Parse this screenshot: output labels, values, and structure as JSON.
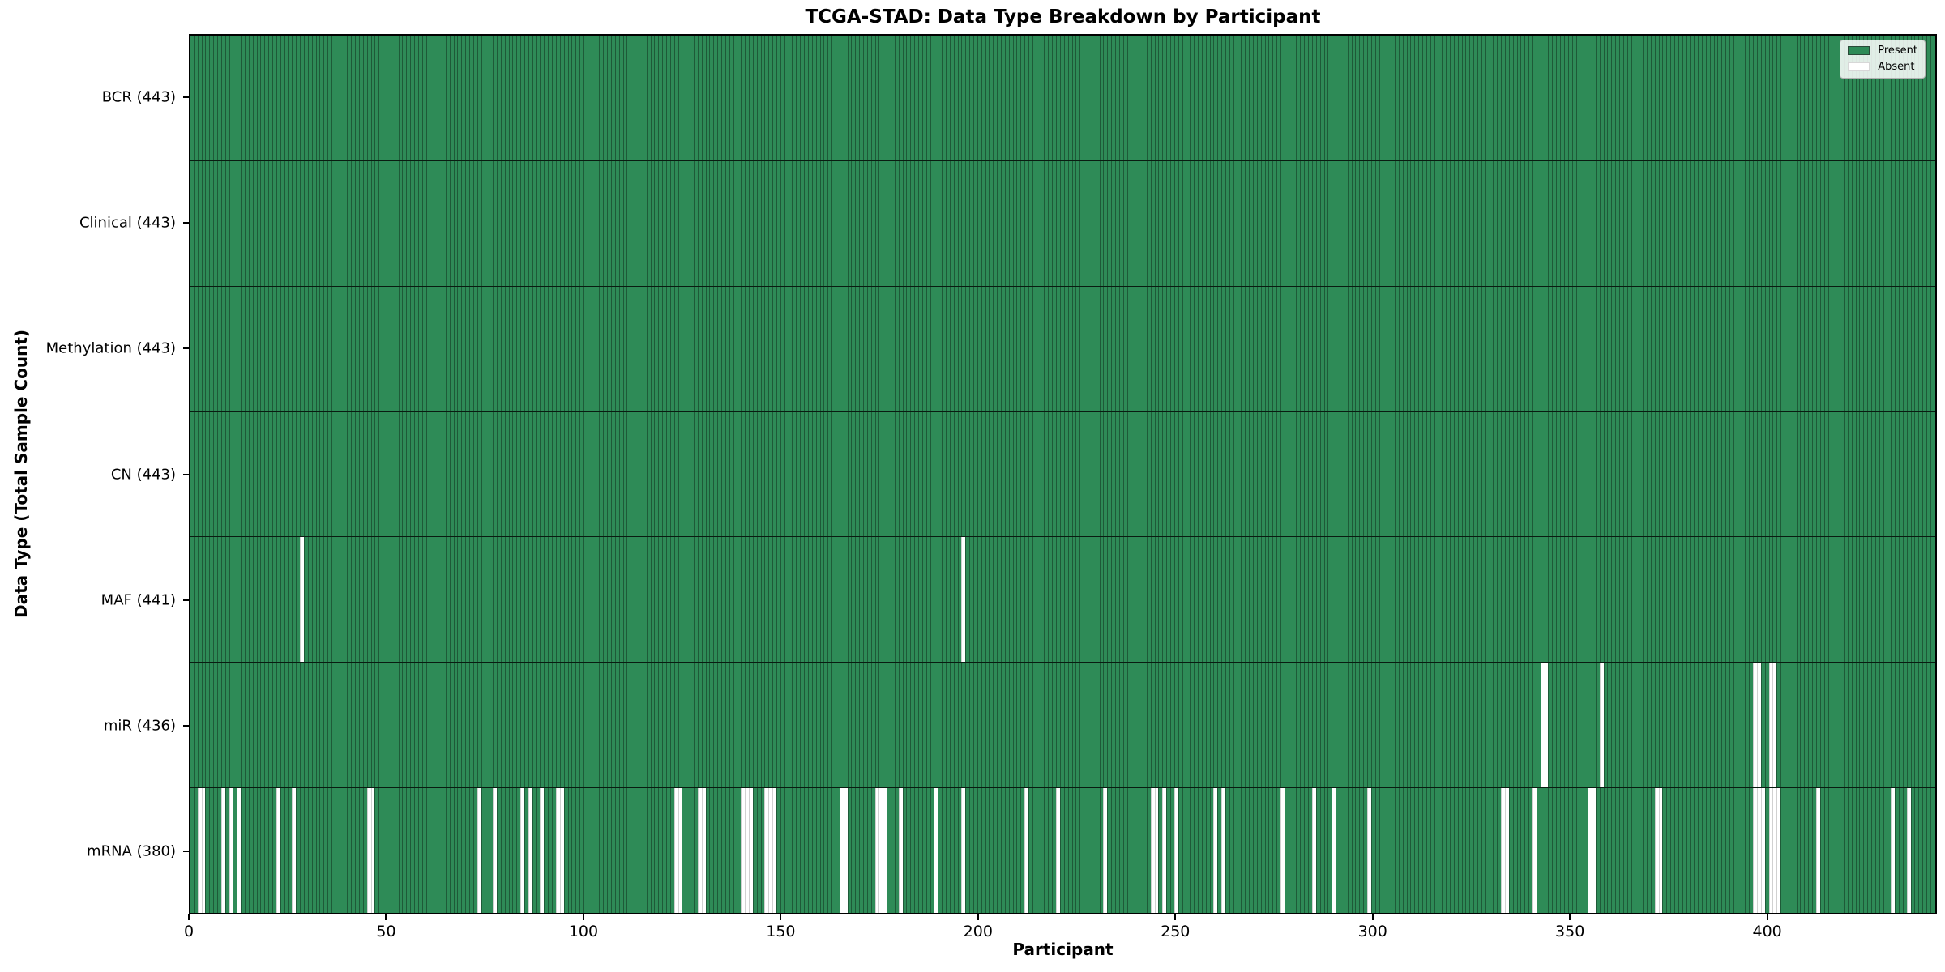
{
  "title": "TCGA-STAD: Data Type Breakdown by Participant",
  "axes": {
    "xlabel": "Participant",
    "ylabel": "Data Type (Total Sample Count)",
    "x_ticks": [
      0,
      50,
      100,
      150,
      200,
      250,
      300,
      350,
      400
    ],
    "x_range": [
      0,
      443
    ]
  },
  "legend": {
    "items": [
      {
        "label": "Present",
        "color": "#2E8B57"
      },
      {
        "label": "Absent",
        "color": "#FFFFFF"
      }
    ],
    "position": "upper right"
  },
  "colors": {
    "present": "#2E8B57",
    "absent": "#FFFFFF",
    "cell_edge": "rgba(0,0,0,0.35)",
    "row_separator": "rgba(0,0,0,0.8)",
    "plot_border": "#000000",
    "text": "#000000",
    "background": "#FFFFFF"
  },
  "chart_data": {
    "type": "heatmap",
    "title": "TCGA-STAD: Data Type Breakdown by Participant",
    "xlabel": "Participant",
    "ylabel": "Data Type (Total Sample Count)",
    "x_ticks": [
      0,
      50,
      100,
      150,
      200,
      250,
      300,
      350,
      400
    ],
    "n_participants": 443,
    "value_encoding": "1 = Present (green), 0 = Absent (white); per-participant column per row",
    "grid": false,
    "legend_entries": [
      "Present",
      "Absent"
    ],
    "rows": [
      {
        "data_type": "BCR",
        "total_samples": 443,
        "tick_label": "BCR (443)",
        "absent_participants": []
      },
      {
        "data_type": "Clinical",
        "total_samples": 443,
        "tick_label": "Clinical (443)",
        "absent_participants": []
      },
      {
        "data_type": "Methylation",
        "total_samples": 443,
        "tick_label": "Methylation (443)",
        "absent_participants": []
      },
      {
        "data_type": "CN",
        "total_samples": 443,
        "tick_label": "CN (443)",
        "absent_participants": []
      },
      {
        "data_type": "MAF",
        "total_samples": 441,
        "tick_label": "MAF (441)",
        "absent_participants": [
          28,
          196
        ]
      },
      {
        "data_type": "miR",
        "total_samples": 436,
        "tick_label": "miR (436)",
        "absent_participants": [
          343,
          344,
          358,
          397,
          398,
          401,
          402
        ]
      },
      {
        "data_type": "mRNA",
        "total_samples": 380,
        "tick_label": "mRNA (380)",
        "absent_participants": [
          2,
          3,
          8,
          10,
          12,
          22,
          26,
          45,
          46,
          73,
          77,
          84,
          86,
          89,
          93,
          94,
          123,
          124,
          129,
          130,
          140,
          141,
          142,
          146,
          147,
          148,
          165,
          166,
          174,
          175,
          176,
          180,
          189,
          196,
          212,
          220,
          232,
          244,
          245,
          247,
          250,
          260,
          262,
          277,
          285,
          290,
          299,
          333,
          334,
          341,
          355,
          356,
          372,
          373,
          397,
          398,
          399,
          401,
          402,
          403,
          413,
          432,
          436
        ]
      }
    ]
  }
}
